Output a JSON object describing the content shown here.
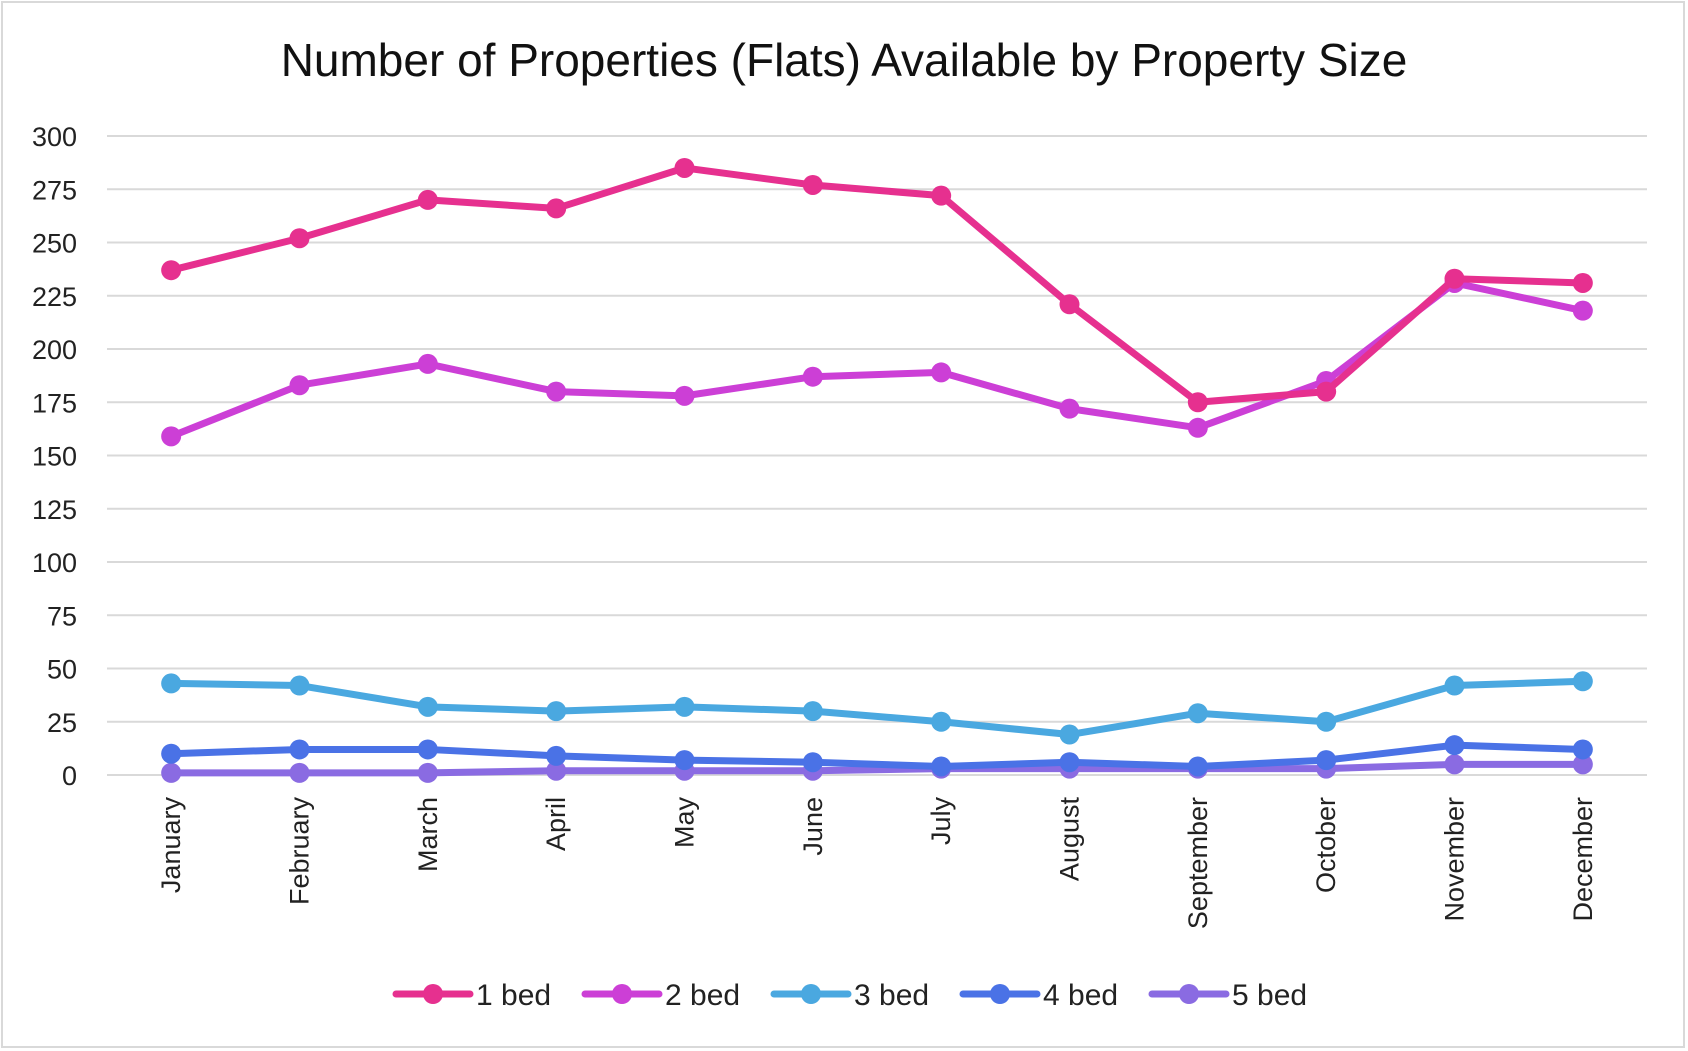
{
  "chart_data": {
    "type": "line",
    "title": "Number of Properties (Flats) Available by Property Size",
    "xlabel": "",
    "ylabel": "",
    "categories": [
      "January",
      "February",
      "March",
      "April",
      "May",
      "June",
      "July",
      "August",
      "September",
      "October",
      "November",
      "December"
    ],
    "ylim": [
      0,
      300
    ],
    "yticks": [
      "0",
      "25",
      "50",
      "75",
      "100",
      "125",
      "150",
      "175",
      "200",
      "225",
      "250",
      "275",
      "300"
    ],
    "grid": true,
    "legend_position": "bottom",
    "series": [
      {
        "name": "1 bed",
        "color": "#e6308f",
        "values": [
          237,
          252,
          270,
          266,
          285,
          277,
          272,
          221,
          175,
          180,
          233,
          231
        ]
      },
      {
        "name": "2 bed",
        "color": "#cc3fd6",
        "values": [
          159,
          183,
          193,
          180,
          178,
          187,
          189,
          172,
          163,
          185,
          231,
          218
        ]
      },
      {
        "name": "3 bed",
        "color": "#4aa8e0",
        "values": [
          43,
          42,
          32,
          30,
          32,
          30,
          25,
          19,
          29,
          25,
          42,
          44
        ]
      },
      {
        "name": "4 bed",
        "color": "#4a72e6",
        "values": [
          10,
          12,
          12,
          9,
          7,
          6,
          4,
          6,
          4,
          7,
          14,
          12
        ]
      },
      {
        "name": "5 bed",
        "color": "#8a6be2",
        "values": [
          1,
          1,
          1,
          2,
          2,
          2,
          3,
          3,
          3,
          3,
          5,
          5
        ]
      }
    ]
  }
}
